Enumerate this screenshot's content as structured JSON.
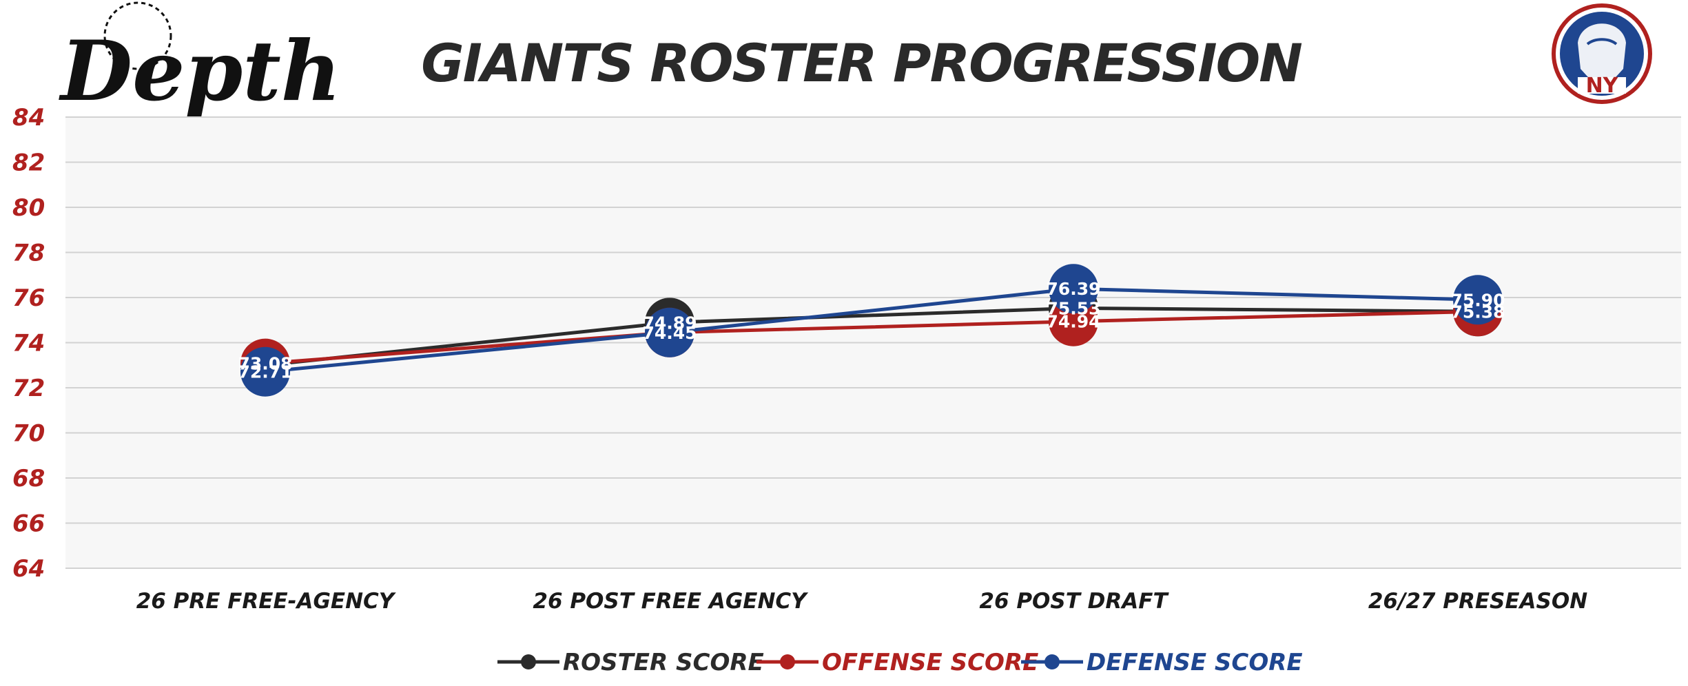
{
  "header": {
    "logo_text": "Depth",
    "badge_text": "NY"
  },
  "chart_data": {
    "type": "line",
    "title": "GIANTS ROSTER PROGRESSION",
    "xlabel": "",
    "ylabel": "",
    "categories": [
      "26 PRE FREE-AGENCY",
      "26 POST FREE AGENCY",
      "26 POST DRAFT",
      "26/27 PRESEASON"
    ],
    "ylim": [
      64,
      84
    ],
    "yticks": [
      64,
      66,
      68,
      70,
      72,
      74,
      76,
      78,
      80,
      82,
      84
    ],
    "grid": true,
    "legend_position": "bottom",
    "series": [
      {
        "name": "ROSTER SCORE",
        "color": "#2b2b2b",
        "values": [
          73.0,
          74.89,
          75.53,
          75.38
        ],
        "labels": [
          "",
          "74.89",
          "75.53",
          ""
        ]
      },
      {
        "name": "OFFENSE SCORE",
        "color": "#b0211f",
        "values": [
          73.08,
          74.45,
          74.94,
          75.38
        ],
        "labels": [
          "73.08",
          "",
          "74.94",
          "75.38"
        ]
      },
      {
        "name": "DEFENSE SCORE",
        "color": "#1f4690",
        "values": [
          72.71,
          74.45,
          76.39,
          75.9
        ],
        "labels": [
          "72.71",
          "74.45",
          "76.39",
          "75.90"
        ]
      }
    ]
  },
  "colors": {
    "ytick": "#b0211f",
    "plot_bg": "#f7f7f7",
    "grid": "#d2d2d2"
  }
}
